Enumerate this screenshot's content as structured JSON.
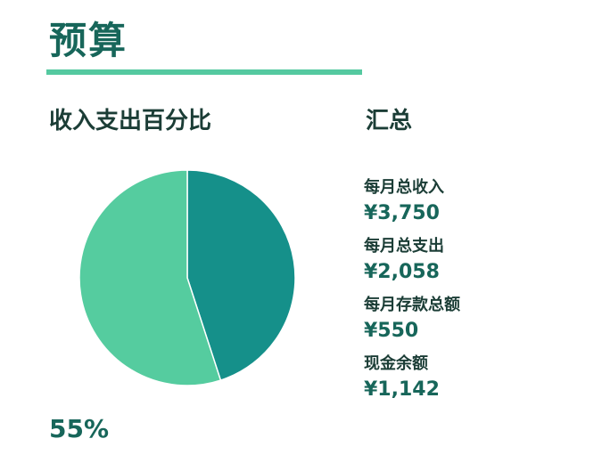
{
  "page": {
    "title": "预算",
    "pie_heading": "收入支出百分比",
    "summary_heading": "汇总",
    "percent_label": "55%"
  },
  "summary": {
    "items": [
      {
        "label": "每月总收入",
        "value": "¥3,750"
      },
      {
        "label": "每月总支出",
        "value": "¥2,058"
      },
      {
        "label": "每月存款总额",
        "value": "¥550"
      },
      {
        "label": "现金余额",
        "value": "¥1,142"
      }
    ]
  },
  "colors": {
    "title": "#17665a",
    "accent_rule": "#55c9a0",
    "slice_dark": "#15908a",
    "slice_light": "#55cc9f"
  },
  "chart_data": {
    "type": "pie",
    "slices": [
      {
        "value": 45,
        "color": "#15908a"
      },
      {
        "value": 55,
        "color": "#55cc9f"
      }
    ],
    "start": "top",
    "direction": "clockwise",
    "data_labels": [
      "55%"
    ]
  }
}
